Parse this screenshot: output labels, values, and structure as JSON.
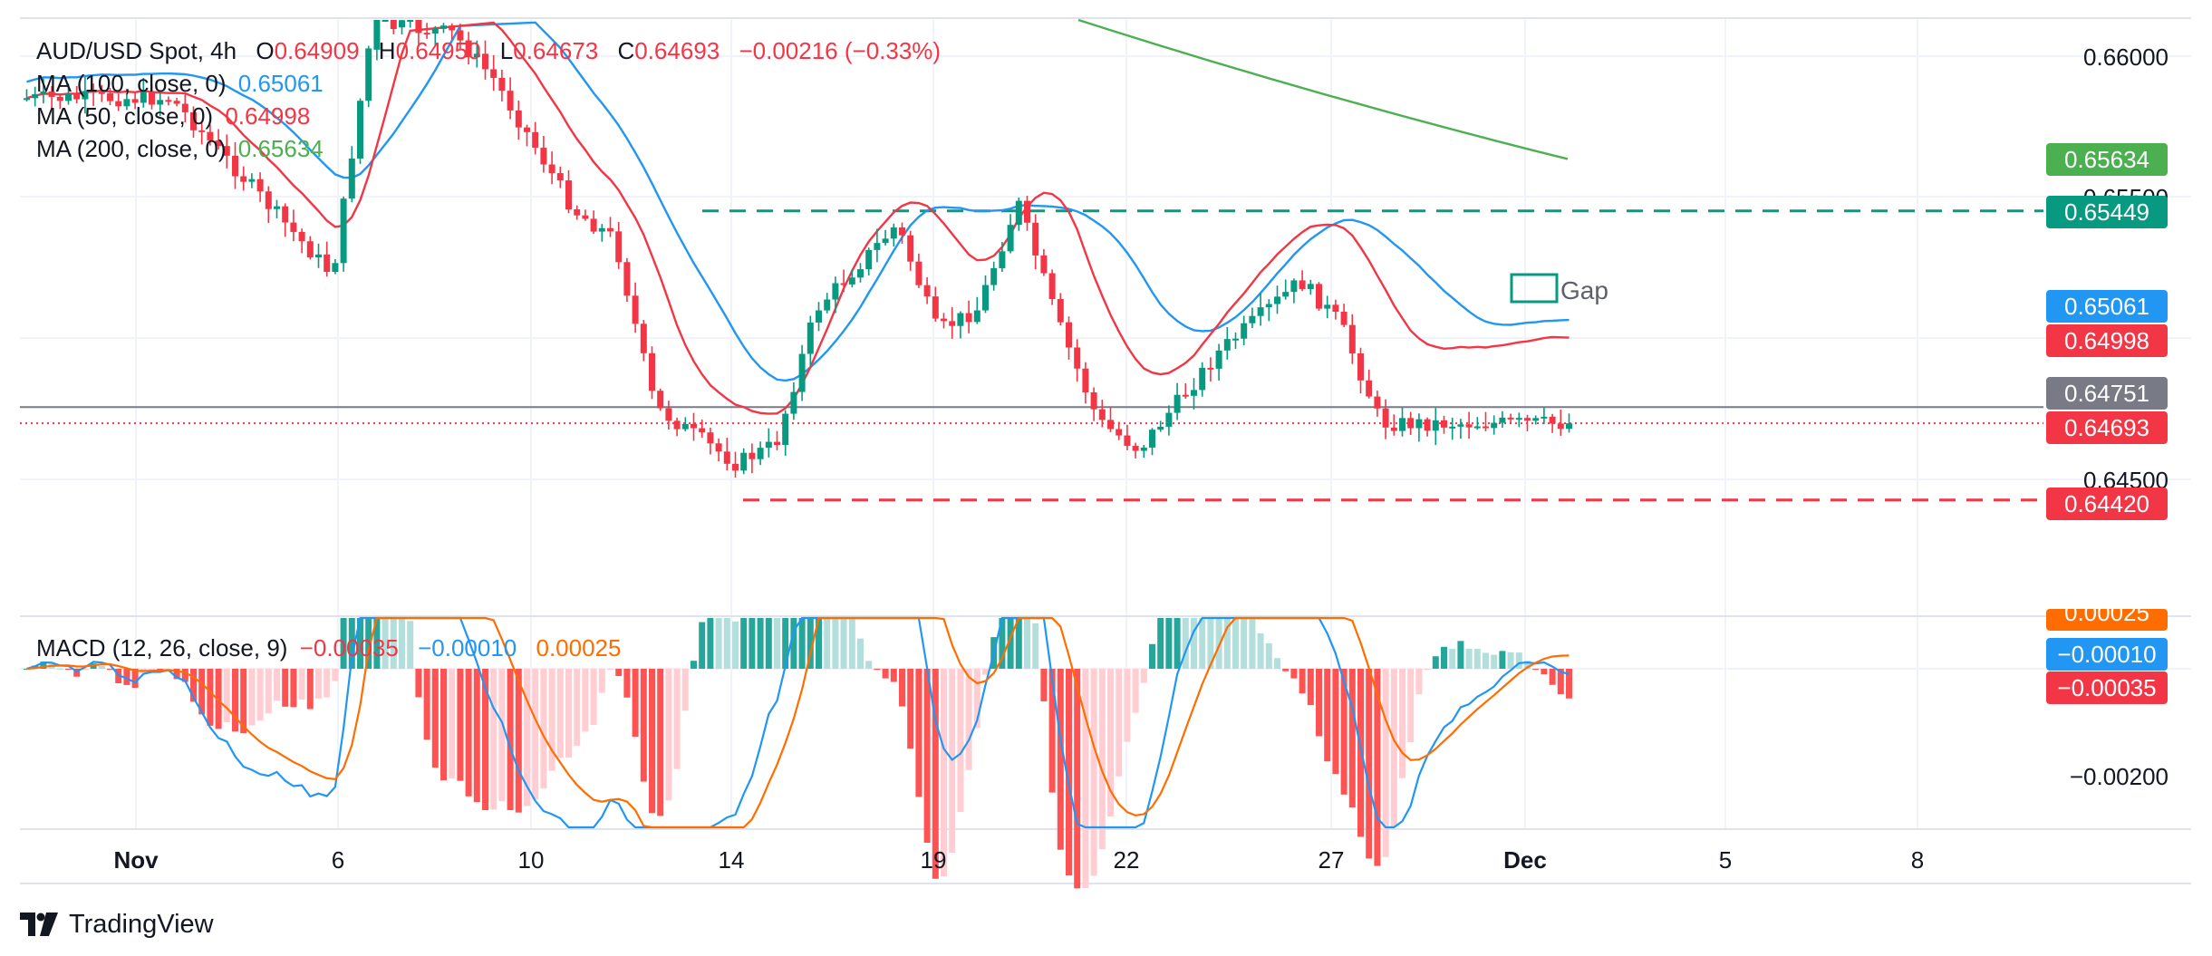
{
  "header": {
    "symbol": "AUD/USD Spot, 4h",
    "open_key": "O",
    "open": "0.64909",
    "high_key": "H",
    "high": "0.64950",
    "low_key": "L",
    "low": "0.64673",
    "close_key": "C",
    "close": "0.64693",
    "change": "−0.00216 (−0.33%)"
  },
  "indicators": [
    {
      "label": "MA (100, close, 0)",
      "value": "0.65061",
      "color": "#2196f3"
    },
    {
      "label": "MA (50, close, 0)",
      "value": "0.64998",
      "color": "#f23645"
    },
    {
      "label": "MA (200, close, 0)",
      "value": "0.65634",
      "color": "#4caf50"
    }
  ],
  "macd_legend": {
    "label": "MACD (12, 26, close, 9)",
    "hist": "−0.00035",
    "hist_color": "#f23645",
    "macd": "−0.00010",
    "macd_color": "#2196f3",
    "signal": "0.00025",
    "signal_color": "#ff6d00"
  },
  "price_scale": {
    "labels": [
      "0.66000",
      "0.65500",
      "0.64500"
    ]
  },
  "price_badges": [
    {
      "text": "0.65634",
      "color": "#4caf50"
    },
    {
      "text": "0.65449",
      "color": "#089981"
    },
    {
      "text": "0.65061",
      "color": "#2196f3"
    },
    {
      "text": "0.64998",
      "color": "#f23645"
    },
    {
      "text": "0.64751",
      "color": "#787b86"
    },
    {
      "text": "0.64693",
      "color": "#f23645"
    },
    {
      "text": "0.64420",
      "color": "#f23645"
    }
  ],
  "macd_scale": {
    "labels": [
      "0.00025",
      "−0.00010",
      "−0.00035",
      "−0.00200"
    ]
  },
  "macd_badges": [
    {
      "text": "0.00025",
      "color": "#ff6d00"
    },
    {
      "text": "−0.00010",
      "color": "#2196f3"
    },
    {
      "text": "−0.00035",
      "color": "#f23645"
    }
  ],
  "time_axis": {
    "labels": [
      "Nov",
      "6",
      "10",
      "14",
      "19",
      "22",
      "27",
      "Dec",
      "5",
      "8"
    ]
  },
  "annotation": {
    "gap_label": "Gap"
  },
  "brand": {
    "name": "TradingView"
  },
  "chart_data": {
    "type": "candlestick",
    "symbol": "AUD/USD Spot",
    "interval": "4h",
    "ylim": [
      0.6375,
      0.6615
    ],
    "x_range": [
      "Oct 29",
      "Dec 9"
    ],
    "levels": {
      "resistance": 0.65449,
      "support": 0.6442,
      "last_close": 0.64693,
      "crosshair": 0.64751
    },
    "moving_averages": [
      {
        "name": "MA (100, close, 0)",
        "last": 0.65061
      },
      {
        "name": "MA (50, close, 0)",
        "last": 0.64998
      },
      {
        "name": "MA (200, close, 0)",
        "last": 0.65634
      }
    ],
    "swing_path": [
      {
        "date": "Oct 29",
        "price": 0.6585
      },
      {
        "date": "Nov 2",
        "price": 0.6585
      },
      {
        "date": "Nov 6",
        "price": 0.6522
      },
      {
        "date": "Nov 7",
        "price": 0.6612
      },
      {
        "date": "Nov 9",
        "price": 0.6608
      },
      {
        "date": "Nov 10",
        "price": 0.6592
      },
      {
        "date": "Nov 12",
        "price": 0.6545
      },
      {
        "date": "Nov 13",
        "price": 0.6535
      },
      {
        "date": "Nov 14",
        "price": 0.6475
      },
      {
        "date": "Nov 16",
        "price": 0.6455
      },
      {
        "date": "Nov 17",
        "price": 0.6462
      },
      {
        "date": "Nov 18",
        "price": 0.651
      },
      {
        "date": "Nov 20",
        "price": 0.654
      },
      {
        "date": "Nov 21",
        "price": 0.6502
      },
      {
        "date": "Nov 22",
        "price": 0.651
      },
      {
        "date": "Nov 23",
        "price": 0.6548
      },
      {
        "date": "Nov 24",
        "price": 0.6505
      },
      {
        "date": "Nov 25",
        "price": 0.647
      },
      {
        "date": "Nov 26",
        "price": 0.646
      },
      {
        "date": "Nov 28",
        "price": 0.6495
      },
      {
        "date": "Nov 30",
        "price": 0.652
      },
      {
        "date": "Dec 1",
        "price": 0.6505
      },
      {
        "date": "Dec 2",
        "price": 0.64693
      }
    ],
    "macd": {
      "params": [
        12,
        26,
        9
      ],
      "histogram": -0.00035,
      "macd": -0.0001,
      "signal": 0.00025
    }
  }
}
